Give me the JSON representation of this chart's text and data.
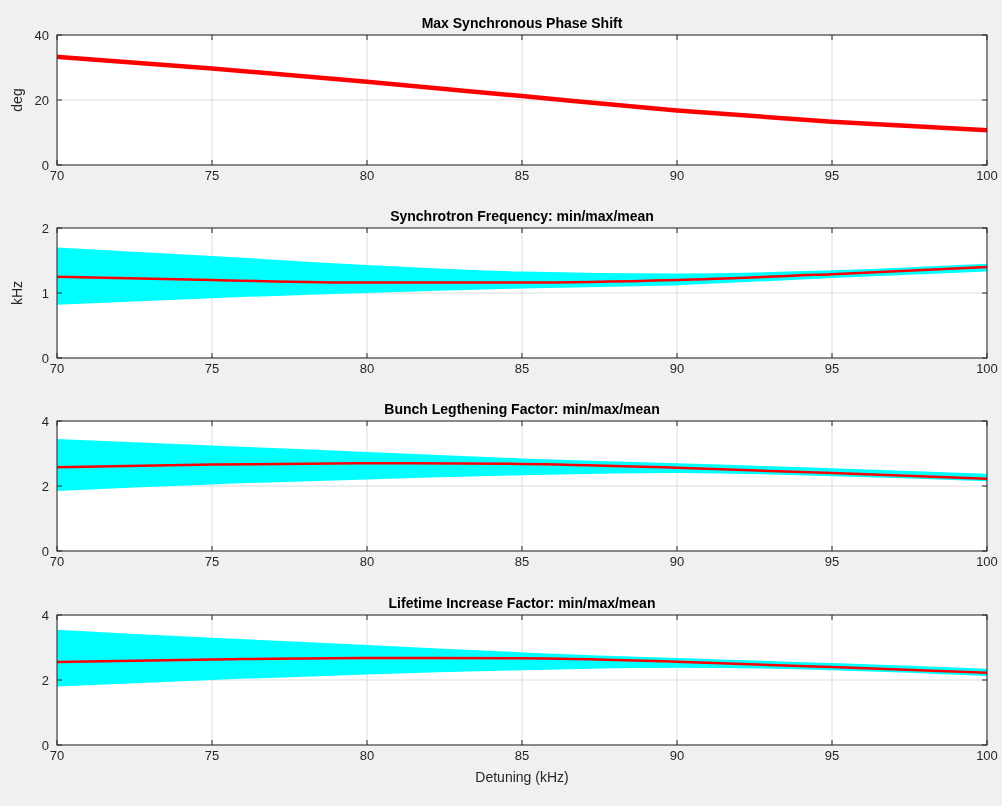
{
  "chart_data": [
    {
      "type": "line",
      "title": "Max Synchronous Phase Shift",
      "ylabel": "deg",
      "x": [
        70,
        75,
        80,
        85,
        90,
        95,
        100
      ],
      "xlim": [
        70,
        100
      ],
      "xticks": [
        70,
        75,
        80,
        85,
        90,
        95,
        100
      ],
      "ylim": [
        0,
        40
      ],
      "yticks": [
        0,
        20,
        40
      ],
      "grid": true,
      "series": [
        {
          "color": "#ff0000",
          "values": [
            33.3,
            29.7,
            25.6,
            21.2,
            16.8,
            13.3,
            10.7
          ]
        }
      ]
    },
    {
      "type": "line",
      "title": "Synchrotron Frequency: min/max/mean",
      "ylabel": "kHz",
      "x": [
        70,
        75,
        80,
        85,
        90,
        95,
        100
      ],
      "xlim": [
        70,
        100
      ],
      "xticks": [
        70,
        75,
        80,
        85,
        90,
        95,
        100
      ],
      "ylim": [
        0,
        2
      ],
      "yticks": [
        0,
        1,
        2
      ],
      "grid": true,
      "series": [
        {
          "color": "#ff0000",
          "values": [
            1.25,
            1.2,
            1.16,
            1.16,
            1.2,
            1.29,
            1.4
          ],
          "lower": [
            0.82,
            0.92,
            1.0,
            1.07,
            1.12,
            1.23,
            1.33
          ],
          "upper": [
            1.7,
            1.57,
            1.43,
            1.33,
            1.3,
            1.35,
            1.45
          ]
        }
      ]
    },
    {
      "type": "line",
      "title": "Bunch Legthening Factor: min/max/mean",
      "x": [
        70,
        75,
        80,
        85,
        90,
        95,
        100
      ],
      "xlim": [
        70,
        100
      ],
      "xticks": [
        70,
        75,
        80,
        85,
        90,
        95,
        100
      ],
      "ylim": [
        0,
        4
      ],
      "yticks": [
        0,
        2,
        4
      ],
      "grid": true,
      "series": [
        {
          "color": "#ff0000",
          "values": [
            2.58,
            2.66,
            2.7,
            2.68,
            2.56,
            2.4,
            2.22
          ],
          "lower": [
            1.85,
            2.05,
            2.2,
            2.33,
            2.4,
            2.3,
            2.15
          ],
          "upper": [
            3.45,
            3.25,
            3.05,
            2.85,
            2.7,
            2.55,
            2.38
          ]
        }
      ]
    },
    {
      "type": "line",
      "title": "Lifetime Increase Factor: min/max/mean",
      "xlabel": "Detuning (kHz)",
      "x": [
        70,
        75,
        80,
        85,
        90,
        95,
        100
      ],
      "xlim": [
        70,
        100
      ],
      "xticks": [
        70,
        75,
        80,
        85,
        90,
        95,
        100
      ],
      "ylim": [
        0,
        4
      ],
      "yticks": [
        0,
        2,
        4
      ],
      "grid": true,
      "series": [
        {
          "color": "#ff0000",
          "values": [
            2.55,
            2.63,
            2.68,
            2.67,
            2.56,
            2.4,
            2.22
          ],
          "lower": [
            1.8,
            2.0,
            2.17,
            2.3,
            2.38,
            2.3,
            2.12
          ],
          "upper": [
            3.55,
            3.3,
            3.08,
            2.85,
            2.68,
            2.52,
            2.35
          ]
        }
      ]
    }
  ]
}
